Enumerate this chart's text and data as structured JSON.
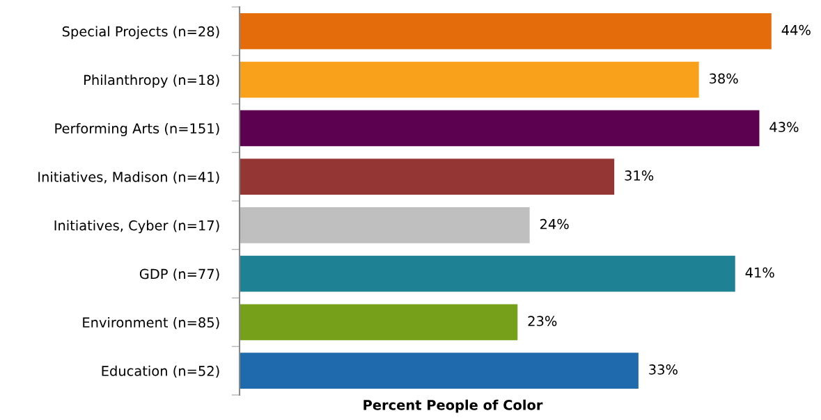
{
  "chart_data": {
    "type": "bar",
    "orientation": "horizontal",
    "xlabel": "Percent People of Color",
    "categories": [
      "Special Projects (n=28)",
      "Philanthropy (n=18)",
      "Performing Arts (n=151)",
      "Initiatives, Madison (n=41)",
      "Initiatives, Cyber (n=17)",
      "GDP (n=77)",
      "Environment (n=85)",
      "Education (n=52)"
    ],
    "values": [
      44,
      38,
      43,
      31,
      24,
      41,
      23,
      33
    ],
    "colors": [
      "#e46c0a",
      "#f9a11b",
      "#5c0050",
      "#943634",
      "#bfbfbf",
      "#1f8194",
      "#77a01a",
      "#1f6aad"
    ],
    "value_labels": [
      "44%",
      "38%",
      "43%",
      "31%",
      "24%",
      "41%",
      "23%",
      "33%"
    ],
    "grid": false,
    "legend": false
  }
}
